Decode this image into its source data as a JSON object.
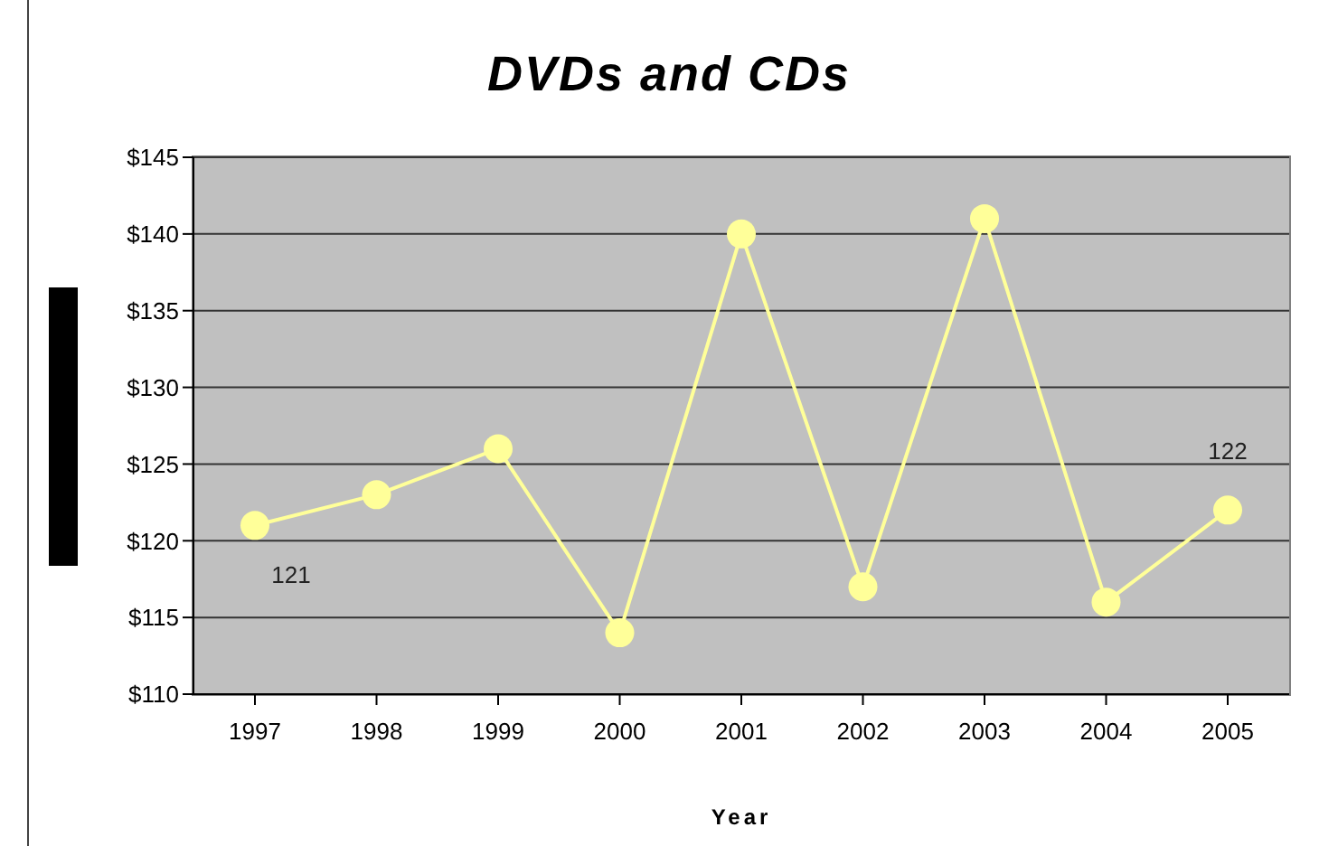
{
  "chart_data": {
    "type": "line",
    "title": "DVDs and CDs",
    "xlabel": "Year",
    "categories": [
      "1997",
      "1998",
      "1999",
      "2000",
      "2001",
      "2002",
      "2003",
      "2004",
      "2005"
    ],
    "series": [
      {
        "color": "#ffff99",
        "values": [
          121,
          123,
          126,
          114,
          140,
          117,
          141,
          116,
          122
        ],
        "value_labels": [
          "121",
          null,
          null,
          null,
          null,
          null,
          null,
          null,
          "122"
        ]
      }
    ],
    "ylim": [
      110,
      145
    ],
    "yticks": [
      {
        "value": 110,
        "label": "$110"
      },
      {
        "value": 115,
        "label": "$115"
      },
      {
        "value": 120,
        "label": "$120"
      },
      {
        "value": 125,
        "label": "$125"
      },
      {
        "value": 130,
        "label": "$130"
      },
      {
        "value": 135,
        "label": "$135"
      },
      {
        "value": 140,
        "label": "$140"
      },
      {
        "value": 145,
        "label": "$145"
      }
    ],
    "grid": "y",
    "marker": "circle",
    "line_style": "solid",
    "legend": false
  }
}
